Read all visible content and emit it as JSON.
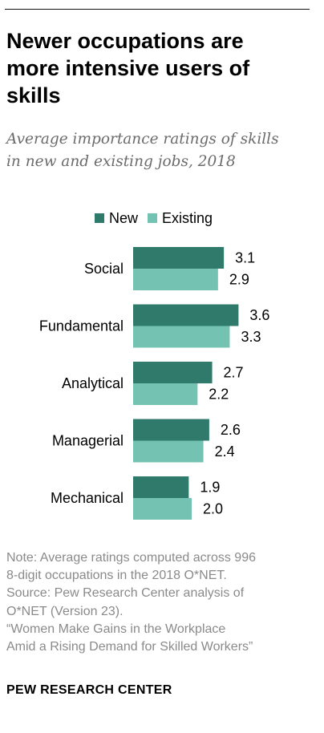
{
  "title_lines": [
    "Newer occupations are",
    "more intensive users of",
    "skills"
  ],
  "subtitle_lines": [
    "Average importance ratings of skills",
    "in new and existing jobs, 2018"
  ],
  "legend": [
    {
      "label": "New",
      "color": "#2f7a6a"
    },
    {
      "label": "Existing",
      "color": "#74c3b2"
    }
  ],
  "chart_data": {
    "type": "bar",
    "orientation": "horizontal",
    "categories": [
      "Social",
      "Fundamental",
      "Analytical",
      "Managerial",
      "Mechanical"
    ],
    "series": [
      {
        "name": "New",
        "values": [
          3.1,
          3.6,
          2.7,
          2.6,
          1.9
        ],
        "labels": [
          "3.1",
          "3.6",
          "2.7",
          "2.6",
          "1.9"
        ],
        "color": "#2f7a6a"
      },
      {
        "name": "Existing",
        "values": [
          2.9,
          3.3,
          2.2,
          2.4,
          2.0
        ],
        "labels": [
          "2.9",
          "3.3",
          "2.2",
          "2.4",
          "2.0"
        ],
        "color": "#74c3b2"
      }
    ],
    "xlim": [
      0,
      4
    ],
    "grid": false,
    "legend_position": "top"
  },
  "notes": [
    "Note: Average ratings computed across 996",
    "8-digit occupations in the 2018 O*NET.",
    "Source: Pew Research Center analysis of",
    "O*NET (Version 23).",
    "“Women Make Gains in the Workplace",
    "Amid a Rising Demand for Skilled Workers”"
  ],
  "brand": "PEW RESEARCH CENTER"
}
